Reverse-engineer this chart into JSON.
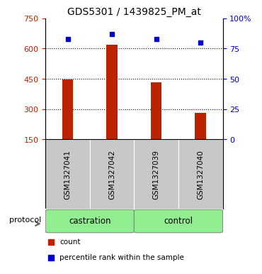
{
  "title": "GDS5301 / 1439825_PM_at",
  "samples": [
    "GSM1327041",
    "GSM1327042",
    "GSM1327039",
    "GSM1327040"
  ],
  "bar_values": [
    447,
    620,
    433,
    280
  ],
  "percentile_values": [
    83,
    87,
    83,
    80
  ],
  "bar_color": "#bb2200",
  "dot_color": "#0000cc",
  "ylim_left": [
    150,
    750
  ],
  "ylim_right": [
    0,
    100
  ],
  "yticks_left": [
    150,
    300,
    450,
    600,
    750
  ],
  "yticks_right": [
    0,
    25,
    50,
    75,
    100
  ],
  "ytick_labels_right": [
    "0",
    "25",
    "50",
    "75",
    "100%"
  ],
  "grid_lines": [
    300,
    450,
    600
  ],
  "groups": [
    {
      "label": "castration",
      "indices": [
        0,
        1
      ],
      "color": "#90ee90"
    },
    {
      "label": "control",
      "indices": [
        2,
        3
      ],
      "color": "#90ee90"
    }
  ],
  "protocol_label": "protocol",
  "legend_items": [
    {
      "label": "count",
      "color": "#bb2200"
    },
    {
      "label": "percentile rank within the sample",
      "color": "#0000cc"
    }
  ],
  "background_plot": "#ffffff",
  "background_sample": "#c8c8c8",
  "bar_width": 0.25
}
